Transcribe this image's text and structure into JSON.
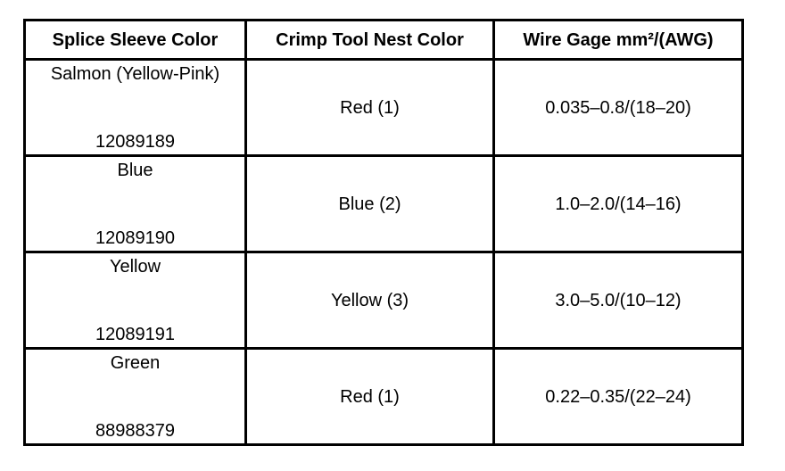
{
  "headers": [
    "Splice Sleeve Color",
    "Crimp Tool Nest Color",
    "Wire Gage mm²/(AWG)"
  ],
  "rows": [
    {
      "sleeve_color": "Salmon (Yellow-Pink)",
      "part_number": "12089189",
      "nest_color": "Red (1)",
      "wire_gage": "0.035–0.8/(18–20)"
    },
    {
      "sleeve_color": "Blue",
      "part_number": "12089190",
      "nest_color": "Blue (2)",
      "wire_gage": "1.0–2.0/(14–16)"
    },
    {
      "sleeve_color": "Yellow",
      "part_number": "12089191",
      "nest_color": "Yellow (3)",
      "wire_gage": "3.0–5.0/(10–12)"
    },
    {
      "sleeve_color": "Green",
      "part_number": "88988379",
      "nest_color": "Red (1)",
      "wire_gage": "0.22–0.35/(22–24)"
    }
  ]
}
